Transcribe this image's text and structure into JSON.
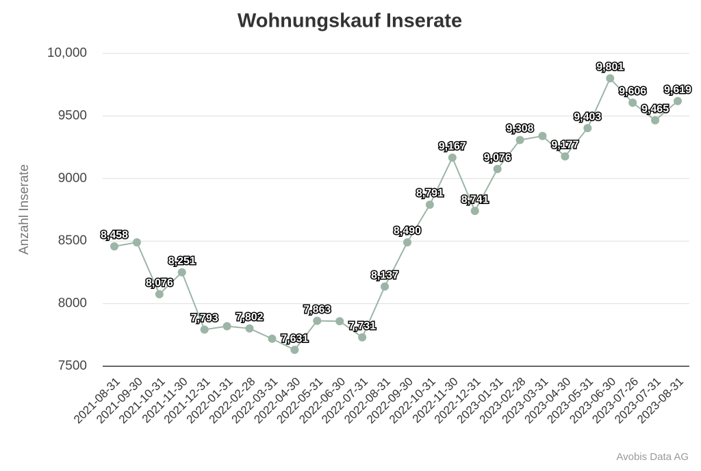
{
  "chart_data": {
    "type": "line",
    "title": "Wohnungskauf Inserate",
    "y_label": "Anzahl Inserate",
    "source": "Avobis Data AG",
    "categories": [
      "2021-08-31",
      "2021-09-30",
      "2021-10-31",
      "2021-11-30",
      "2021-12-31",
      "2022-01-31",
      "2022-02-28",
      "2022-03-31",
      "2022-04-30",
      "2022-05-31",
      "2022-06-30",
      "2022-07-31",
      "2022-08-31",
      "2022-09-30",
      "2022-10-31",
      "2022-11-30",
      "2022-12-31",
      "2023-01-31",
      "2023-02-28",
      "2023-03-31",
      "2023-04-30",
      "2023-05-31",
      "2023-06-30",
      "2023-07-26",
      "2023-07-31",
      "2023-08-31"
    ],
    "values": [
      8458,
      8490,
      8076,
      8251,
      7793,
      7820,
      7802,
      7720,
      7631,
      7863,
      7860,
      7731,
      8137,
      8490,
      8791,
      9167,
      8741,
      9076,
      9308,
      9340,
      9177,
      9403,
      9801,
      9606,
      9465,
      9619
    ],
    "value_labels": [
      "8,458",
      null,
      "8,076",
      "8,251",
      "7,793",
      null,
      "7,802",
      null,
      "7,631",
      "7,863",
      null,
      "7,731",
      "8,137",
      "8,490",
      "8,791",
      "9,167",
      "8,741",
      "9,076",
      "9,308",
      null,
      "9,177",
      "9,403",
      "9,801",
      "9,606",
      "9,465",
      "9,619"
    ],
    "color": "#9cb5a6",
    "ylim": [
      7500,
      10000
    ],
    "yticks": [
      7500,
      8000,
      8500,
      9000,
      9500,
      {
        "value": 10000,
        "label": "10,000"
      }
    ],
    "grid": true
  }
}
